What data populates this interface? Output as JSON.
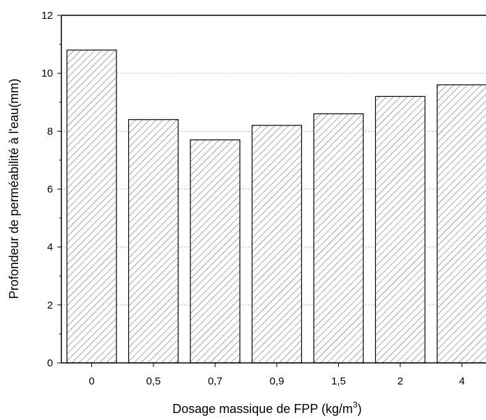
{
  "chart_data": {
    "type": "bar",
    "categories": [
      "0",
      "0,5",
      "0,7",
      "0,9",
      "1,5",
      "2",
      "4"
    ],
    "values": [
      10.8,
      8.4,
      7.7,
      8.2,
      8.6,
      9.2,
      9.6
    ],
    "xlabel": "Dosage massique de FPP (kg/m",
    "xlabel_superscript": "3",
    "xlabel_suffix": ")",
    "ylabel": "Profondeur de perméabilité à l'eau(mm)",
    "ylim": [
      0,
      12
    ],
    "yticks": [
      "0",
      "2",
      "4",
      "6",
      "8",
      "10",
      "12"
    ],
    "grid": "horizontal dotted",
    "bar_pattern": "diagonal hatch",
    "colors": {
      "bar_fill": "#ffffff",
      "bar_stroke": "#000000",
      "hatch": "#555555",
      "grid": "#bbbbbb"
    }
  }
}
